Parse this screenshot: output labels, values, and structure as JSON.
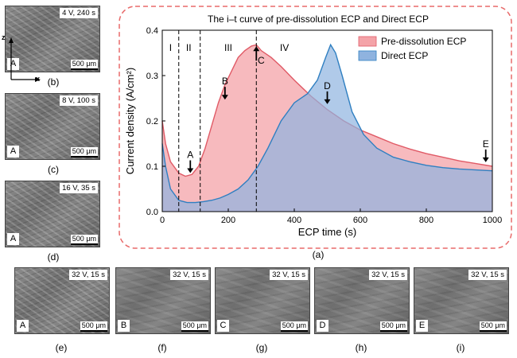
{
  "panels": [
    {
      "id": "b",
      "condition": "4 V, 240 s",
      "letter": "A",
      "scale": "500 μm",
      "caption": "(b)"
    },
    {
      "id": "c",
      "condition": "8 V, 100 s",
      "letter": "A",
      "scale": "500 μm",
      "caption": "(c)"
    },
    {
      "id": "d",
      "condition": "16 V, 35 s",
      "letter": "A",
      "scale": "500 μm",
      "caption": "(d)"
    },
    {
      "id": "e",
      "condition": "32 V, 15 s",
      "letter": "A",
      "scale": "500 μm",
      "caption": "(e)"
    },
    {
      "id": "f",
      "condition": "32 V, 15 s",
      "letter": "B",
      "scale": "500 μm",
      "caption": "(f)"
    },
    {
      "id": "g",
      "condition": "32 V, 15 s",
      "letter": "C",
      "scale": "500 μm",
      "caption": "(g)"
    },
    {
      "id": "h",
      "condition": "32 V, 15 s",
      "letter": "D",
      "scale": "500 μm",
      "caption": "(h)"
    },
    {
      "id": "i",
      "condition": "32 V, 15 s",
      "letter": "E",
      "scale": "500 μm",
      "caption": "(i)"
    }
  ],
  "axis_indicator": {
    "z": "z",
    "x": "x"
  },
  "chart_caption": "(a)",
  "colors": {
    "pre": "#f4a3a8",
    "pre_line": "#e05a66",
    "direct": "#8fb3df",
    "direct_line": "#2f7fc1",
    "frame": "#e86a6a"
  },
  "chart_data": {
    "type": "area",
    "title": "The i–t curve of pre-dissolution ECP and Direct ECP",
    "xlabel": "ECP time (s)",
    "ylabel": "Current density (A/cm²)",
    "xlim": [
      0,
      1000
    ],
    "ylim": [
      0,
      0.4
    ],
    "xticks": [
      0,
      200,
      400,
      600,
      800,
      1000
    ],
    "yticks": [
      0.0,
      0.1,
      0.2,
      0.3,
      0.4
    ],
    "legend_position": "top-right",
    "series": [
      {
        "name": "Pre-dissolution ECP",
        "x": [
          0,
          10,
          25,
          50,
          70,
          90,
          110,
          130,
          150,
          170,
          190,
          210,
          230,
          250,
          270,
          285,
          300,
          330,
          360,
          400,
          450,
          500,
          550,
          600,
          650,
          700,
          750,
          800,
          850,
          900,
          950,
          1000
        ],
        "y": [
          0.2,
          0.15,
          0.11,
          0.085,
          0.078,
          0.082,
          0.1,
          0.14,
          0.19,
          0.24,
          0.28,
          0.31,
          0.34,
          0.355,
          0.365,
          0.368,
          0.355,
          0.34,
          0.32,
          0.29,
          0.255,
          0.225,
          0.2,
          0.18,
          0.165,
          0.15,
          0.138,
          0.128,
          0.12,
          0.112,
          0.106,
          0.1
        ]
      },
      {
        "name": "Direct ECP",
        "x": [
          0,
          10,
          25,
          50,
          75,
          100,
          125,
          150,
          175,
          200,
          230,
          260,
          290,
          320,
          360,
          400,
          440,
          470,
          495,
          510,
          525,
          545,
          575,
          610,
          650,
          700,
          750,
          800,
          850,
          900,
          950,
          1000
        ],
        "y": [
          0.15,
          0.1,
          0.05,
          0.025,
          0.02,
          0.02,
          0.022,
          0.025,
          0.03,
          0.038,
          0.05,
          0.07,
          0.1,
          0.14,
          0.2,
          0.24,
          0.26,
          0.29,
          0.34,
          0.368,
          0.35,
          0.3,
          0.22,
          0.17,
          0.14,
          0.12,
          0.11,
          0.102,
          0.097,
          0.094,
          0.092,
          0.09
        ]
      }
    ],
    "regions": [
      {
        "label": "I",
        "x": 25
      },
      {
        "label": "II",
        "x": 80
      },
      {
        "label": "III",
        "x": 200
      },
      {
        "label": "IV",
        "x": 370
      }
    ],
    "dividers": [
      50,
      115,
      285
    ],
    "markers": [
      {
        "label": "A",
        "x": 85,
        "y": 0.078,
        "dir": "down"
      },
      {
        "label": "B",
        "x": 190,
        "y": 0.24,
        "dir": "down"
      },
      {
        "label": "C",
        "x": 285,
        "y": 0.368,
        "dir": "up"
      },
      {
        "label": "D",
        "x": 500,
        "y": 0.23,
        "dir": "down"
      },
      {
        "label": "E",
        "x": 980,
        "y": 0.102,
        "dir": "down"
      }
    ]
  }
}
